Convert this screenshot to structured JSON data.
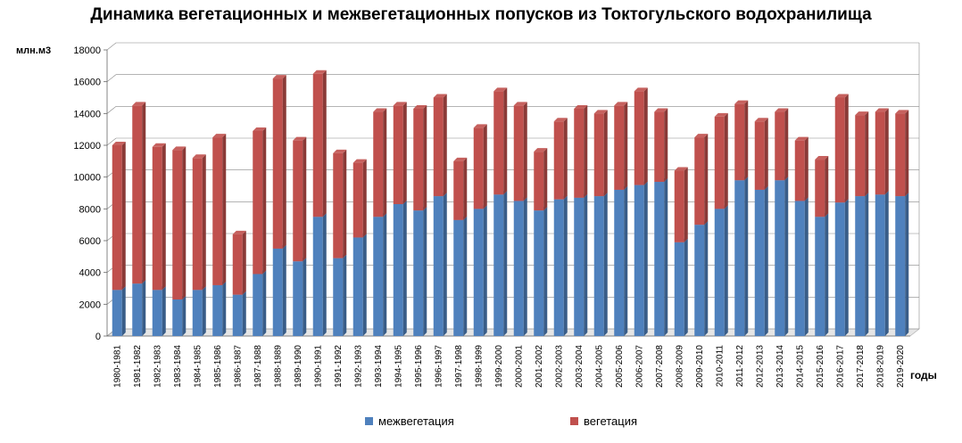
{
  "chart_data": {
    "type": "bar",
    "stacked": true,
    "title": "Динамика вегетационных и межвегетационных попусков из Токтогульского водохранилища",
    "ylabel": "млн.м3",
    "xlabel": "годы",
    "ylim": [
      0,
      18000
    ],
    "yticks": [
      0,
      2000,
      4000,
      6000,
      8000,
      10000,
      12000,
      14000,
      16000,
      18000
    ],
    "grid": true,
    "legend_position": "bottom",
    "categories": [
      "1980-1981",
      "1981-1982",
      "1982-1983",
      "1983-1984",
      "1984-1985",
      "1985-1986",
      "1986-1987",
      "1987-1988",
      "1988-1989",
      "1989-1990",
      "1990-1991",
      "1991-1992",
      "1992-1993",
      "1993-1994",
      "1994-1995",
      "1995-1996",
      "1996-1997",
      "1997-1998",
      "1998-1999",
      "1999-2000",
      "2000-2001",
      "2001-2002",
      "2002-2003",
      "2003-2004",
      "2004-2005",
      "2005-2006",
      "2006-2007",
      "2007-2008",
      "2008-2009",
      "2009-2010",
      "2010-2011",
      "2011-2012",
      "2012-2013",
      "2013-2014",
      "2014-2015",
      "2015-2016",
      "2016-2017",
      "2017-2018",
      "2018-2019",
      "2019-2020"
    ],
    "series": [
      {
        "name": "межвегетация",
        "color": "#4f81bd",
        "values": [
          2900,
          3300,
          2900,
          2300,
          2900,
          3200,
          2600,
          3900,
          5500,
          4700,
          7500,
          4900,
          6200,
          7500,
          8300,
          7900,
          8800,
          7300,
          8000,
          8900,
          8500,
          7900,
          8600,
          8700,
          8800,
          9200,
          9500,
          9700,
          5900,
          7000,
          8000,
          9800,
          9200,
          9800,
          8500,
          7500,
          8400,
          8800,
          8900,
          8800
        ]
      },
      {
        "name": "вегетация",
        "color": "#c0504d",
        "values": [
          9100,
          11200,
          9000,
          9400,
          8300,
          9300,
          3800,
          9000,
          10700,
          7600,
          9000,
          6600,
          4700,
          6600,
          6200,
          6400,
          6200,
          3700,
          5100,
          6500,
          6000,
          3700,
          4900,
          5600,
          5200,
          5300,
          5900,
          4400,
          4500,
          5500,
          5800,
          4800,
          4300,
          4300,
          3800,
          3600,
          6600,
          5100,
          5200,
          5200
        ]
      }
    ]
  }
}
